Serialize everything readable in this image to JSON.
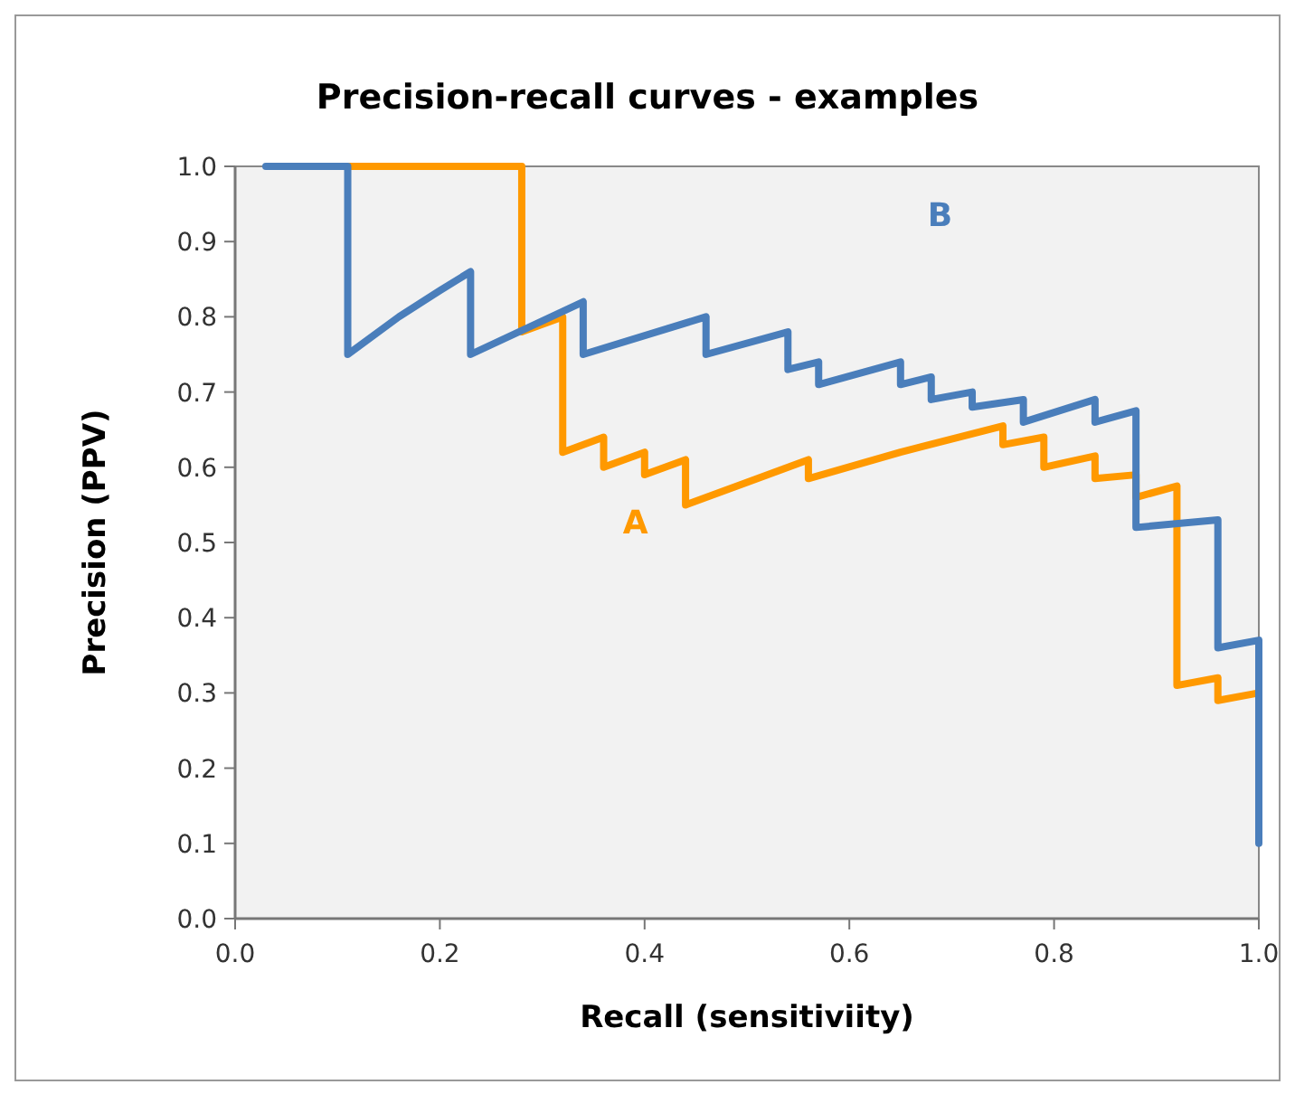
{
  "chart_data": {
    "type": "line",
    "title": "Precision-recall curves - examples",
    "xlabel": "Recall (sensitiviity)",
    "ylabel": "Precision (PPV)",
    "xlim": [
      0,
      1
    ],
    "ylim": [
      0,
      1
    ],
    "xticks": [
      {
        "value": 0,
        "label": "0.0"
      },
      {
        "value": 0.2,
        "label": "0.2"
      },
      {
        "value": 0.4,
        "label": "0.4"
      },
      {
        "value": 0.6,
        "label": "0.6"
      },
      {
        "value": 0.8,
        "label": "0.8"
      },
      {
        "value": 1,
        "label": "1.0"
      }
    ],
    "yticks": [
      {
        "value": 0,
        "label": "0.0"
      },
      {
        "value": 0.1,
        "label": "0.1"
      },
      {
        "value": 0.2,
        "label": "0.2"
      },
      {
        "value": 0.3,
        "label": "0.3"
      },
      {
        "value": 0.4,
        "label": "0.4"
      },
      {
        "value": 0.5,
        "label": "0.5"
      },
      {
        "value": 0.6,
        "label": "0.6"
      },
      {
        "value": 0.7,
        "label": "0.7"
      },
      {
        "value": 0.8,
        "label": "0.8"
      },
      {
        "value": 0.9,
        "label": "0.9"
      },
      {
        "value": 1,
        "label": "1.0"
      }
    ],
    "grid": false,
    "legend": false,
    "marker": "none",
    "line_style": "solid",
    "series": [
      {
        "name": "A",
        "color": "#ff9900",
        "x": [
          0.11,
          0.28,
          0.28,
          0.32,
          0.32,
          0.36,
          0.36,
          0.4,
          0.4,
          0.44,
          0.44,
          0.5,
          0.56,
          0.56,
          0.65,
          0.75,
          0.75,
          0.79,
          0.79,
          0.84,
          0.84,
          0.88,
          0.88,
          0.92,
          0.92,
          0.96,
          0.96,
          1.0
        ],
        "values": [
          1.0,
          1.0,
          0.78,
          0.8,
          0.62,
          0.64,
          0.6,
          0.62,
          0.59,
          0.61,
          0.55,
          0.58,
          0.61,
          0.585,
          0.62,
          0.655,
          0.63,
          0.64,
          0.6,
          0.615,
          0.585,
          0.59,
          0.56,
          0.575,
          0.31,
          0.32,
          0.29,
          0.3
        ]
      },
      {
        "name": "B",
        "color": "#4a7ebb",
        "x": [
          0.03,
          0.11,
          0.11,
          0.16,
          0.2,
          0.23,
          0.23,
          0.34,
          0.34,
          0.46,
          0.46,
          0.54,
          0.54,
          0.57,
          0.57,
          0.65,
          0.65,
          0.68,
          0.68,
          0.72,
          0.72,
          0.77,
          0.77,
          0.84,
          0.84,
          0.88,
          0.88,
          0.96,
          0.96,
          1.0,
          1.0
        ],
        "values": [
          1.0,
          1.0,
          0.75,
          0.8,
          0.835,
          0.86,
          0.75,
          0.82,
          0.75,
          0.8,
          0.75,
          0.78,
          0.73,
          0.74,
          0.71,
          0.74,
          0.71,
          0.72,
          0.69,
          0.7,
          0.68,
          0.69,
          0.66,
          0.69,
          0.66,
          0.675,
          0.52,
          0.53,
          0.36,
          0.37,
          0.1
        ]
      }
    ]
  }
}
